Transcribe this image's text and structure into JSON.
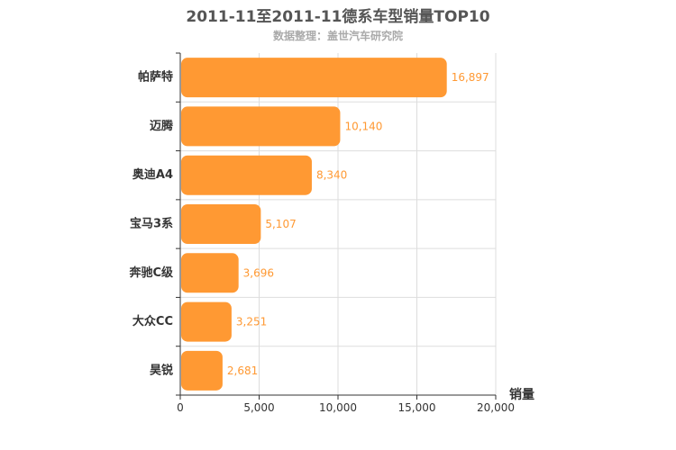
{
  "chart_data": {
    "type": "bar",
    "orientation": "horizontal",
    "title": "2011-11至2011-11德系车型销量TOP10",
    "subtitle": "数据整理：盖世汽车研究院",
    "categories": [
      "帕萨特",
      "迈腾",
      "奥迪A4",
      "宝马3系",
      "奔驰C级",
      "大众CC",
      "昊锐"
    ],
    "values": [
      16897,
      10140,
      8340,
      5107,
      3696,
      3251,
      2681
    ],
    "value_labels": [
      "16,897",
      "10,140",
      "8,340",
      "5,107",
      "3,696",
      "3,251",
      "2,681"
    ],
    "xlabel": "销量",
    "ylabel": "",
    "xlim": [
      0,
      20000
    ],
    "ticks": [
      0,
      5000,
      10000,
      15000,
      20000
    ],
    "tick_labels": [
      "0",
      "5,000",
      "10,000",
      "15,000",
      "20,000"
    ],
    "grid": true,
    "colors": {
      "bar": "#ff9933",
      "value_label": "#ff9933",
      "grid": "#dddddd",
      "axis": "#333333"
    }
  }
}
